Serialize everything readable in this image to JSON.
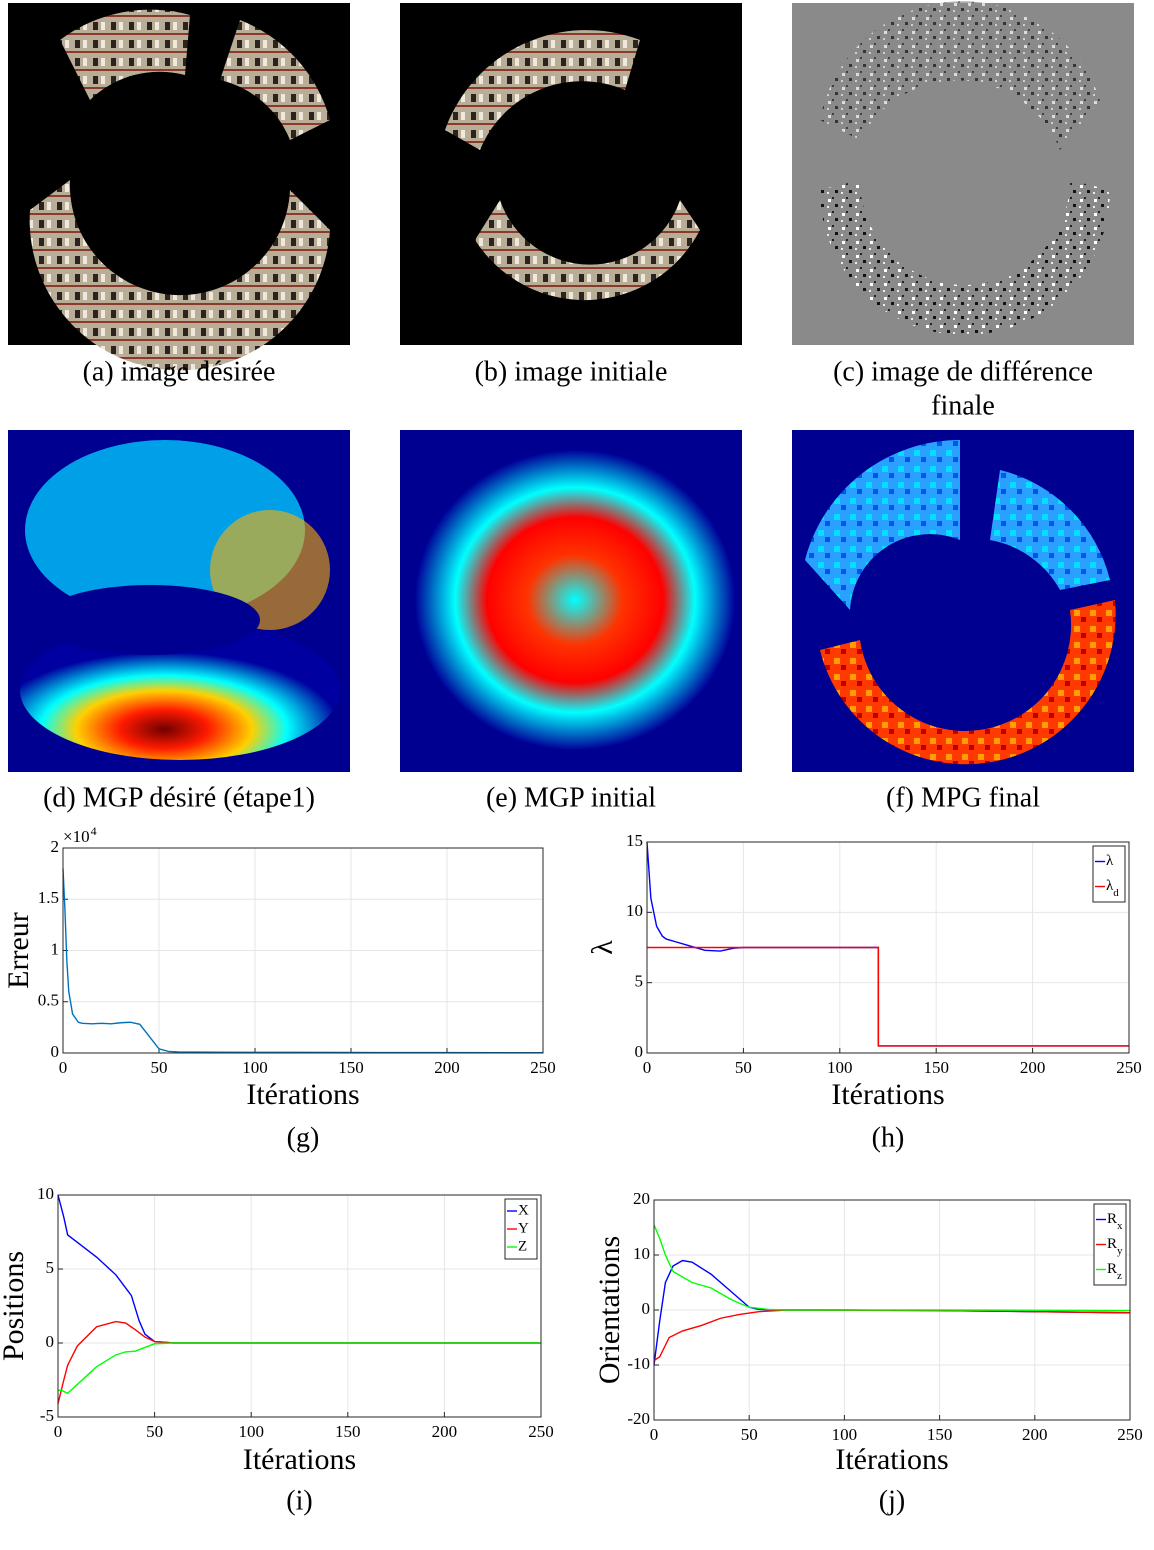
{
  "figures": [
    {
      "caption_lines": [
        "(a) image désirée"
      ]
    },
    {
      "caption_lines": [
        "(b) image initiale"
      ]
    },
    {
      "caption_lines": [
        "(c) image de différence",
        "finale"
      ]
    },
    {
      "caption_lines": [
        "(d) MGP désiré (étape1)"
      ]
    },
    {
      "caption_lines": [
        "(e) MGP initial"
      ]
    },
    {
      "caption_lines": [
        "(f) MPG final"
      ]
    }
  ],
  "chart_data": [
    {
      "type": "line",
      "caption": "(g)",
      "x_label": "Itérations",
      "y_label": "Erreur",
      "y_multiplier": {
        "base": "×10",
        "exponent": "4"
      },
      "xlim": [
        0,
        250
      ],
      "xticks": [
        0,
        50,
        100,
        150,
        200,
        250
      ],
      "ylim": [
        0,
        20000
      ],
      "yticks": [
        {
          "value": 0,
          "label": "0"
        },
        {
          "value": 5000,
          "label": "0.5"
        },
        {
          "value": 10000,
          "label": "1"
        },
        {
          "value": 15000,
          "label": "1.5"
        },
        {
          "value": 20000,
          "label": "2"
        }
      ],
      "grid": true,
      "series": [
        {
          "color": "#0072bd",
          "x": [
            0,
            1,
            2,
            3,
            5,
            8,
            10,
            15,
            20,
            25,
            30,
            35,
            40,
            45,
            50,
            55,
            60,
            80,
            100,
            120,
            150,
            200,
            250
          ],
          "values": [
            18000,
            14000,
            9000,
            6000,
            3800,
            3000,
            2900,
            2850,
            2900,
            2850,
            2950,
            3000,
            2800,
            1600,
            400,
            150,
            100,
            80,
            70,
            60,
            50,
            40,
            30
          ]
        }
      ]
    },
    {
      "type": "line",
      "caption": "(h)",
      "x_label": "Itérations",
      "y_label": "λ",
      "xlim": [
        0,
        250
      ],
      "xticks": [
        0,
        50,
        100,
        150,
        200,
        250
      ],
      "ylim": [
        0,
        15
      ],
      "yticks": [
        0,
        5,
        10,
        15
      ],
      "grid": true,
      "legend": "upper right",
      "series": [
        {
          "name": "λ",
          "color": "#0000ff",
          "x": [
            0,
            2,
            5,
            8,
            10,
            15,
            20,
            30,
            38,
            45,
            50,
            120,
            120,
            250
          ],
          "values": [
            15,
            11,
            9,
            8.3,
            8.1,
            7.9,
            7.7,
            7.3,
            7.25,
            7.45,
            7.5,
            7.5,
            0.5,
            0.5
          ]
        },
        {
          "name": "λ",
          "subscript": "d",
          "color": "#ff0000",
          "x": [
            0,
            50,
            120,
            120,
            250
          ],
          "values": [
            7.5,
            7.5,
            7.5,
            0.5,
            0.5
          ]
        }
      ]
    },
    {
      "type": "line",
      "caption": "(i)",
      "x_label": "Itérations",
      "y_label": "Positions",
      "xlim": [
        0,
        250
      ],
      "xticks": [
        0,
        50,
        100,
        150,
        200,
        250
      ],
      "ylim": [
        -5,
        10
      ],
      "yticks": [
        -5,
        0,
        5,
        10
      ],
      "grid": true,
      "legend": "upper right",
      "series": [
        {
          "name": "X",
          "color": "#0000ff",
          "x": [
            0,
            3,
            5,
            10,
            20,
            30,
            38,
            42,
            45,
            50,
            60,
            250
          ],
          "values": [
            10,
            8.5,
            7.3,
            6.8,
            5.8,
            4.6,
            3.2,
            1.5,
            0.6,
            0.1,
            0,
            0
          ]
        },
        {
          "name": "Y",
          "color": "#ff0000",
          "x": [
            0,
            3,
            5,
            10,
            20,
            30,
            35,
            40,
            45,
            50,
            60,
            250
          ],
          "values": [
            -4.1,
            -2.5,
            -1.5,
            -0.2,
            1.1,
            1.45,
            1.35,
            0.9,
            0.4,
            0.1,
            0,
            0
          ]
        },
        {
          "name": "Z",
          "color": "#00ff00",
          "x": [
            0,
            2,
            5,
            10,
            20,
            30,
            35,
            40,
            45,
            50,
            60,
            250
          ],
          "values": [
            -3.2,
            -3.2,
            -3.4,
            -2.8,
            -1.6,
            -0.8,
            -0.6,
            -0.55,
            -0.3,
            -0.05,
            0,
            0
          ]
        }
      ]
    },
    {
      "type": "line",
      "caption": "(j)",
      "x_label": "Itérations",
      "y_label": "Orientations",
      "xlim": [
        0,
        250
      ],
      "xticks": [
        0,
        50,
        100,
        150,
        200,
        250
      ],
      "ylim": [
        -20,
        20
      ],
      "yticks": [
        -20,
        -10,
        0,
        10,
        20
      ],
      "grid": true,
      "legend": "upper right",
      "series": [
        {
          "name": "R",
          "subscript": "x",
          "color": "#0000ff",
          "x": [
            0,
            3,
            6,
            10,
            15,
            20,
            30,
            40,
            45,
            50,
            55,
            70,
            100,
            150,
            200,
            250
          ],
          "values": [
            -10,
            -2,
            5,
            8,
            9,
            8.7,
            6.5,
            3.5,
            2,
            0.5,
            0.1,
            0,
            0,
            -0.1,
            -0.3,
            -0.5
          ]
        },
        {
          "name": "R",
          "subscript": "y",
          "color": "#ff0000",
          "x": [
            0,
            3,
            8,
            15,
            25,
            35,
            45,
            55,
            70,
            150,
            200,
            250
          ],
          "values": [
            -9.2,
            -8.5,
            -5,
            -3.8,
            -2.8,
            -1.5,
            -0.8,
            -0.3,
            0,
            -0.1,
            -0.3,
            -0.5
          ]
        },
        {
          "name": "R",
          "subscript": "z",
          "color": "#00ff00",
          "x": [
            0,
            3,
            6,
            10,
            20,
            30,
            35,
            40,
            45,
            50,
            60,
            70,
            150,
            250
          ],
          "values": [
            15.5,
            13,
            10,
            7,
            5,
            4,
            3,
            2,
            1.2,
            0.5,
            0.1,
            0,
            0,
            -0.1
          ]
        }
      ]
    }
  ]
}
